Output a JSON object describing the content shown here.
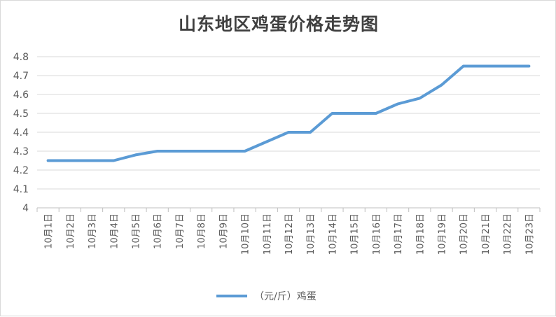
{
  "chart_data": {
    "type": "line",
    "title": "山东地区鸡蛋价格走势图",
    "categories": [
      "10月1日",
      "10月2日",
      "10月3日",
      "10月4日",
      "10月5日",
      "10月6日",
      "10月7日",
      "10月8日",
      "10月9日",
      "10月10日",
      "10月11日",
      "10月12日",
      "10月13日",
      "10月14日",
      "10月15日",
      "10月16日",
      "10月17日",
      "10月18日",
      "10月19日",
      "10月20日",
      "10月21日",
      "10月22日",
      "10月23日"
    ],
    "series": [
      {
        "name": "（元/斤）鸡蛋",
        "color": "#5b9bd5",
        "values": [
          4.25,
          4.25,
          4.25,
          4.25,
          4.28,
          4.3,
          4.3,
          4.3,
          4.3,
          4.3,
          4.35,
          4.4,
          4.4,
          4.5,
          4.5,
          4.5,
          4.55,
          4.58,
          4.65,
          4.75,
          4.75,
          4.75,
          4.75
        ]
      }
    ],
    "ylim": [
      4,
      4.8
    ],
    "yticks": [
      "4",
      "4.1",
      "4.2",
      "4.3",
      "4.4",
      "4.5",
      "4.6",
      "4.7",
      "4.8"
    ],
    "grid": true,
    "legend_position": "bottom"
  }
}
